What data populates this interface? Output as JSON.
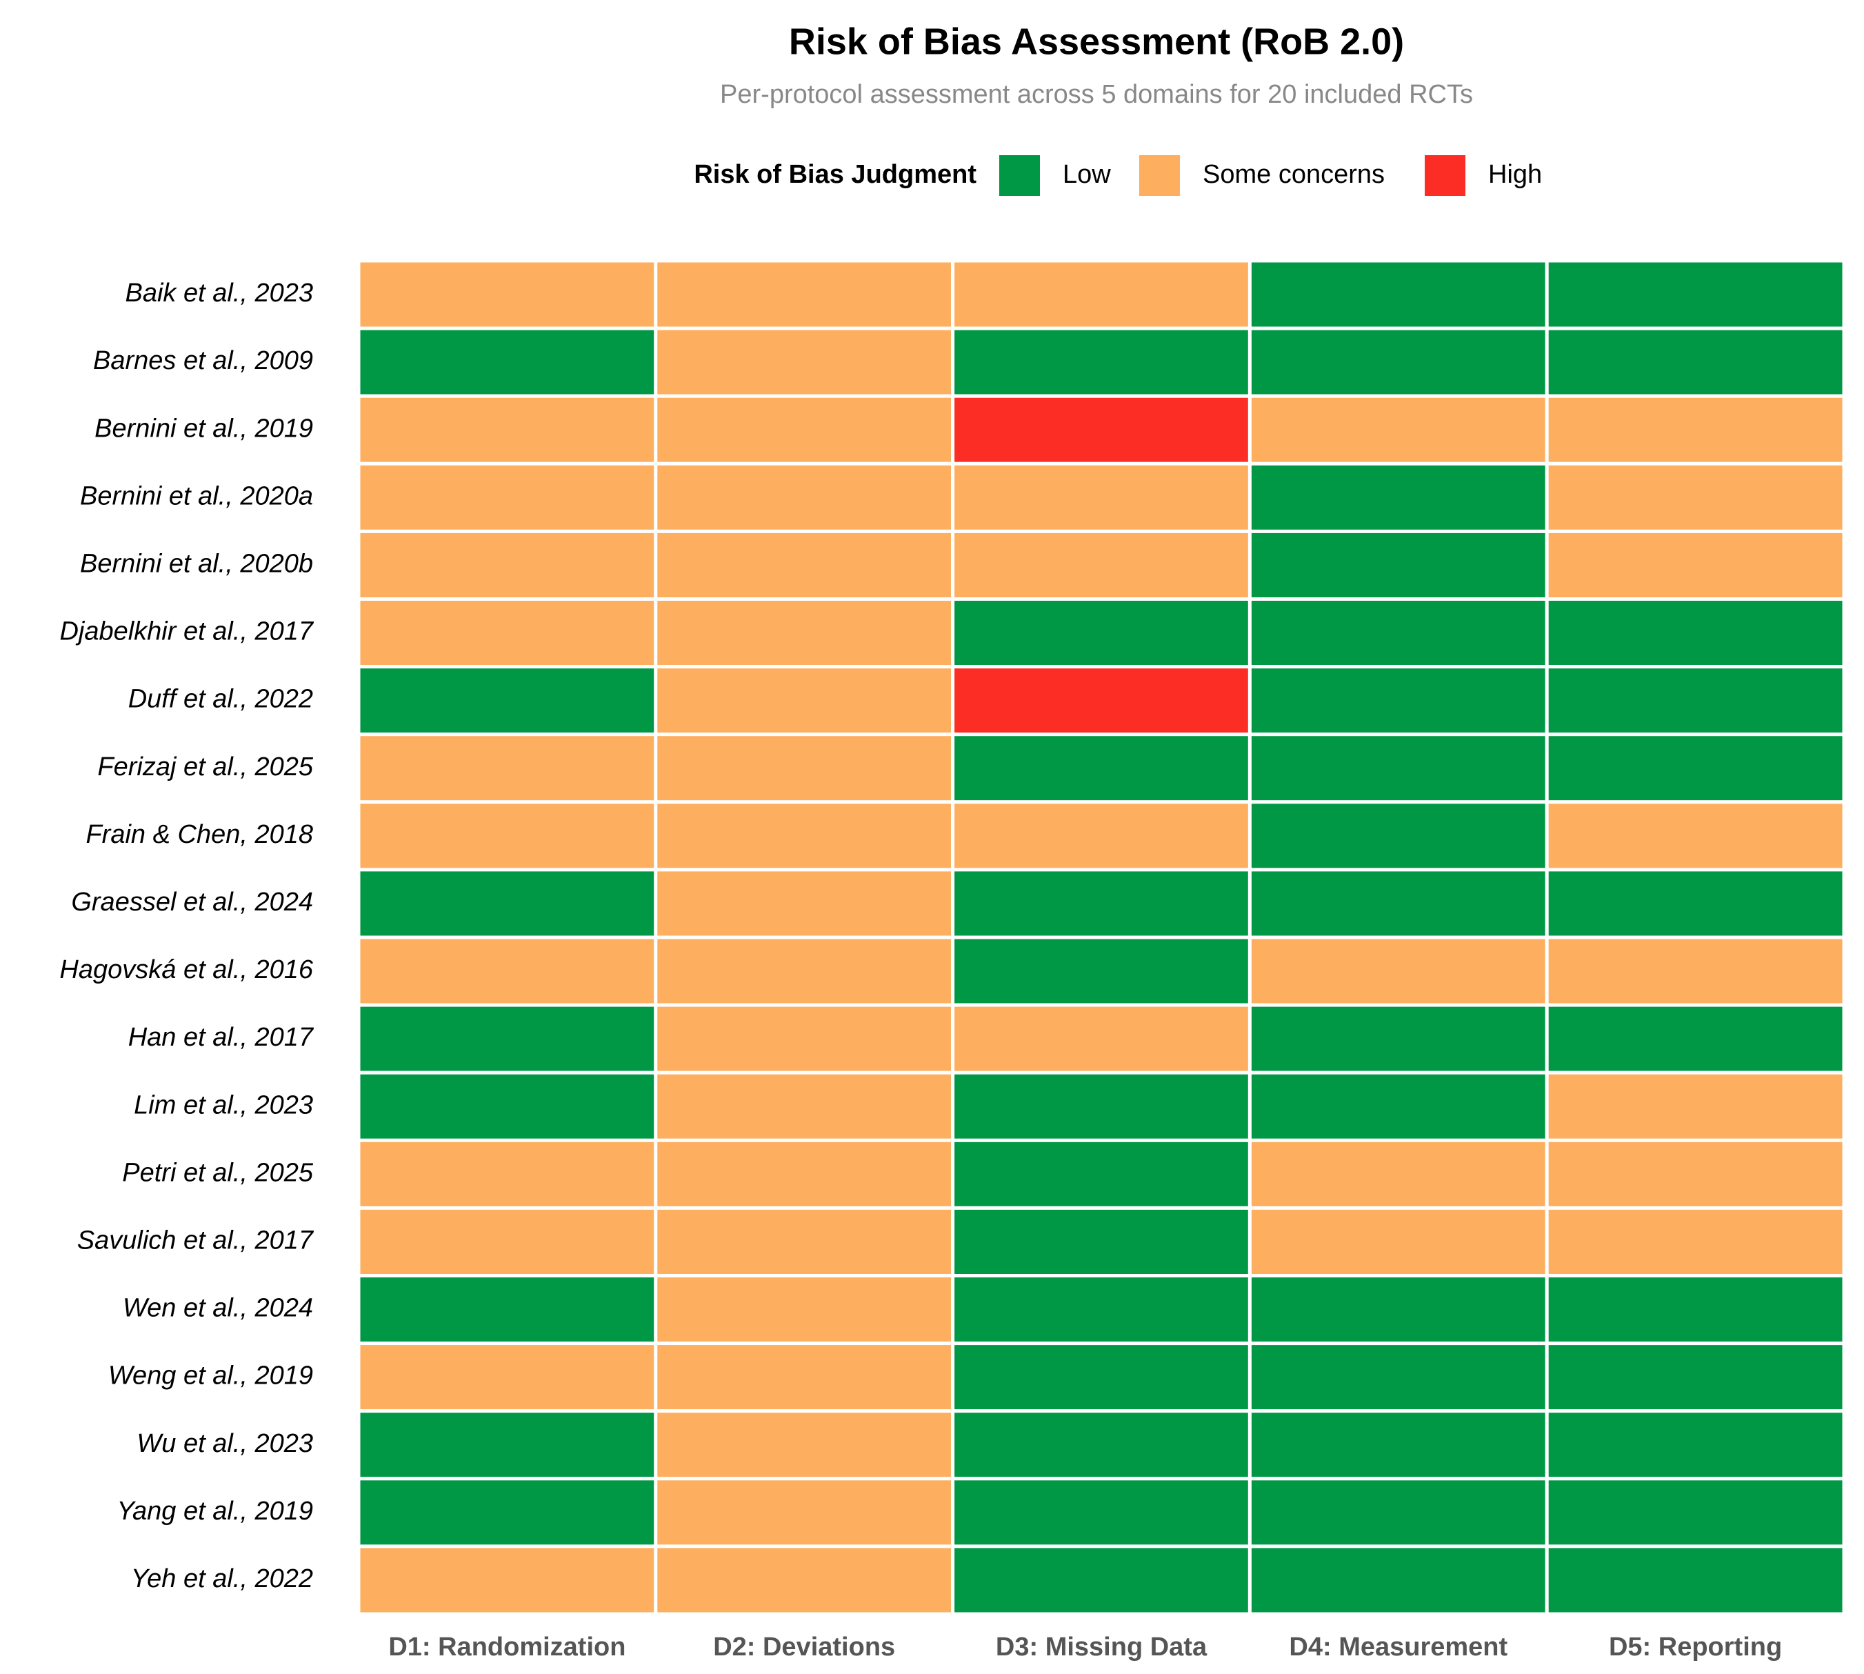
{
  "chart_data": {
    "type": "heatmap",
    "title": "Risk of Bias Assessment (RoB 2.0)",
    "subtitle": "Per-protocol assessment across 5 domains for 20 included RCTs",
    "legend": {
      "title": "Risk of Bias Judgment",
      "position": "top",
      "levels": [
        {
          "name": "Low",
          "color": "#009845"
        },
        {
          "name": "Some concerns",
          "color": "#fdae5e"
        },
        {
          "name": "High",
          "color": "#fb2d24"
        }
      ]
    },
    "x_categories": [
      "D1: Randomization",
      "D2: Deviations",
      "D3: Missing Data",
      "D4: Measurement",
      "D5: Reporting"
    ],
    "y_categories": [
      "Baik et al., 2023",
      "Barnes et al., 2009",
      "Bernini et al., 2019",
      "Bernini et al., 2020a",
      "Bernini et al., 2020b",
      "Djabelkhir et al., 2017",
      "Duff et al., 2022",
      "Ferizaj et al., 2025",
      "Frain & Chen, 2018",
      "Graessel et al., 2024",
      "Hagovská et al., 2016",
      "Han et al., 2017",
      "Lim et al., 2023",
      "Petri et al., 2025",
      "Savulich et al., 2017",
      "Wen et al., 2024",
      "Weng et al., 2019",
      "Wu et al., 2023",
      "Yang et al., 2019",
      "Yeh et al., 2022"
    ],
    "values": [
      [
        "Some concerns",
        "Some concerns",
        "Some concerns",
        "Low",
        "Low"
      ],
      [
        "Low",
        "Some concerns",
        "Low",
        "Low",
        "Low"
      ],
      [
        "Some concerns",
        "Some concerns",
        "High",
        "Some concerns",
        "Some concerns"
      ],
      [
        "Some concerns",
        "Some concerns",
        "Some concerns",
        "Low",
        "Some concerns"
      ],
      [
        "Some concerns",
        "Some concerns",
        "Some concerns",
        "Low",
        "Some concerns"
      ],
      [
        "Some concerns",
        "Some concerns",
        "Low",
        "Low",
        "Low"
      ],
      [
        "Low",
        "Some concerns",
        "High",
        "Low",
        "Low"
      ],
      [
        "Some concerns",
        "Some concerns",
        "Low",
        "Low",
        "Low"
      ],
      [
        "Some concerns",
        "Some concerns",
        "Some concerns",
        "Low",
        "Some concerns"
      ],
      [
        "Low",
        "Some concerns",
        "Low",
        "Low",
        "Low"
      ],
      [
        "Some concerns",
        "Some concerns",
        "Low",
        "Some concerns",
        "Some concerns"
      ],
      [
        "Low",
        "Some concerns",
        "Some concerns",
        "Low",
        "Low"
      ],
      [
        "Low",
        "Some concerns",
        "Low",
        "Low",
        "Some concerns"
      ],
      [
        "Some concerns",
        "Some concerns",
        "Low",
        "Some concerns",
        "Some concerns"
      ],
      [
        "Some concerns",
        "Some concerns",
        "Low",
        "Some concerns",
        "Some concerns"
      ],
      [
        "Low",
        "Some concerns",
        "Low",
        "Low",
        "Low"
      ],
      [
        "Some concerns",
        "Some concerns",
        "Low",
        "Low",
        "Low"
      ],
      [
        "Low",
        "Some concerns",
        "Low",
        "Low",
        "Low"
      ],
      [
        "Low",
        "Some concerns",
        "Low",
        "Low",
        "Low"
      ],
      [
        "Some concerns",
        "Some concerns",
        "Low",
        "Low",
        "Low"
      ]
    ]
  }
}
